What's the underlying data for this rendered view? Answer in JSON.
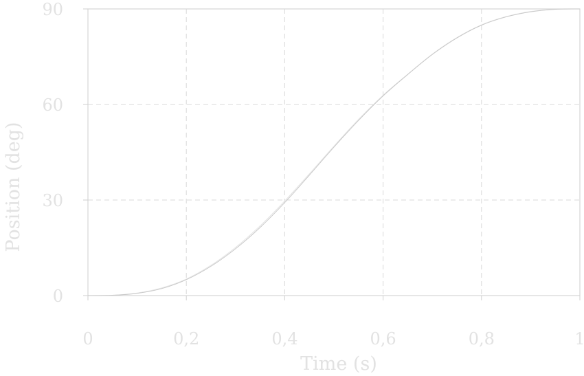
{
  "chart_data": {
    "type": "line",
    "title": "",
    "xlabel": "Time (s)",
    "ylabel": "Position (deg)",
    "xlim": [
      0,
      1
    ],
    "ylim": [
      0,
      90
    ],
    "x_ticks": [
      0,
      0.2,
      0.4,
      0.6,
      0.8,
      1
    ],
    "x_tick_labels": [
      "0",
      "0,2",
      "0,4",
      "0,6",
      "0,8",
      "1"
    ],
    "y_ticks": [
      0,
      30,
      60,
      90
    ],
    "y_tick_labels": [
      "0",
      "30",
      "60",
      "90"
    ],
    "grid": true,
    "series": [
      {
        "color": "#e4e4e4",
        "x": [
          0,
          0.05,
          0.1,
          0.15,
          0.2,
          0.25,
          0.3,
          0.35,
          0.4,
          0.45,
          0.5,
          0.55,
          0.6,
          0.65,
          0.7,
          0.75,
          0.8,
          0.85,
          0.9,
          0.95,
          1
        ],
        "y": [
          0,
          0.1,
          0.8,
          2.4,
          5.2,
          9.5,
          15.1,
          21.9,
          29.7,
          38.2,
          46.9,
          55.3,
          62.9,
          69.5,
          75.8,
          81.0,
          85.0,
          87.6,
          89.2,
          89.9,
          90
        ]
      },
      {
        "color": "#c8c8c8",
        "x": [
          0,
          0.05,
          0.1,
          0.15,
          0.2,
          0.25,
          0.3,
          0.35,
          0.4,
          0.45,
          0.5,
          0.55,
          0.6,
          0.65,
          0.7,
          0.75,
          0.8,
          0.85,
          0.9,
          0.95,
          1
        ],
        "y": [
          0,
          0.1,
          0.7,
          2.2,
          5.0,
          9.2,
          14.7,
          21.4,
          29.2,
          37.8,
          46.6,
          55.0,
          62.7,
          69.4,
          75.7,
          80.9,
          84.9,
          87.5,
          89.1,
          89.9,
          90
        ]
      }
    ]
  }
}
